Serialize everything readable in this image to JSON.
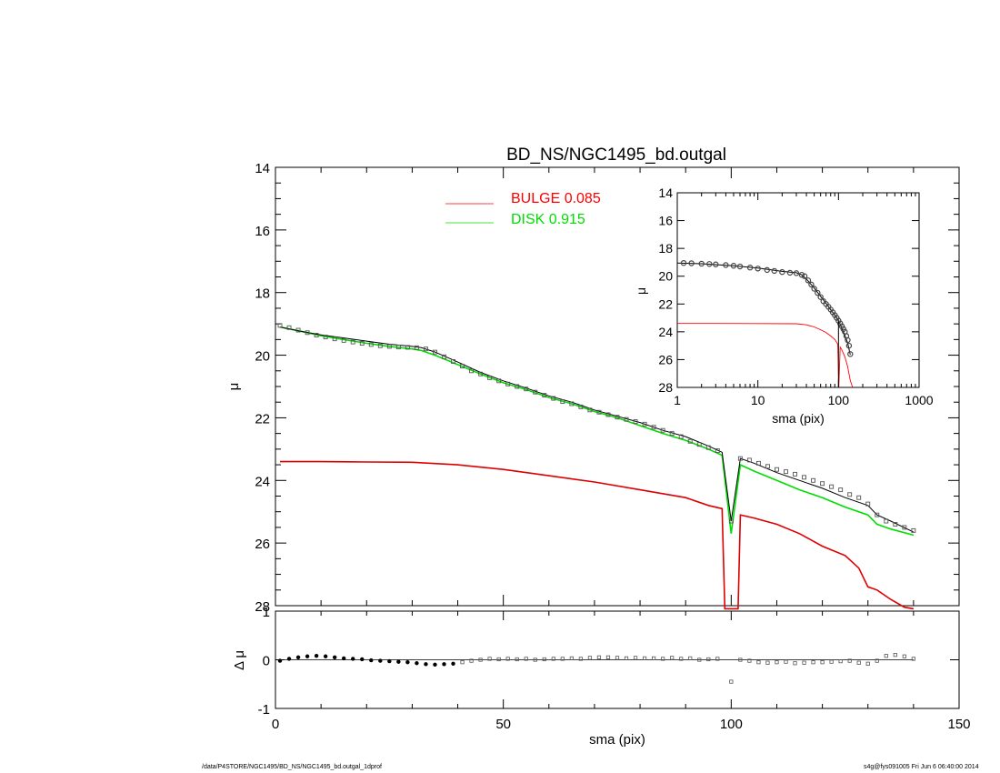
{
  "title": "BD_NS/NGC1495_bd.outgal",
  "footer": {
    "path": "/data/P4STORE/NGC1495/BD_NS/NGC1495_bd.outgal_1dprof",
    "stamp": "s4g@fys091005  Fri Jun  6 06:40:00 2014"
  },
  "colors": {
    "bulge": "#ff0000",
    "disk": "#00ee00",
    "data": "#555555",
    "model": "#000000"
  },
  "legend": [
    {
      "label": "BULGE  0.085",
      "color": "#ff0000"
    },
    {
      "label": "DISK  0.915",
      "color": "#00dd00"
    }
  ],
  "chart_data": [
    {
      "type": "line",
      "panel": "main",
      "xlabel": "",
      "ylabel": "μ",
      "xlim": [
        0,
        150
      ],
      "ylim": [
        28,
        14
      ],
      "y_inverted": true,
      "yticks": [
        14,
        16,
        18,
        20,
        22,
        24,
        26,
        28
      ],
      "series": [
        {
          "name": "data",
          "x": [
            1,
            3,
            5,
            7,
            9,
            11,
            13,
            15,
            17,
            19,
            21,
            23,
            25,
            27,
            29,
            31,
            33,
            35,
            37,
            39,
            41,
            43,
            45,
            47,
            49,
            51,
            53,
            55,
            57,
            59,
            61,
            63,
            65,
            67,
            69,
            71,
            73,
            75,
            77,
            79,
            81,
            83,
            85,
            87,
            89,
            91,
            93,
            95,
            97,
            100,
            102,
            104,
            106,
            108,
            110,
            112,
            114,
            116,
            118,
            120,
            122,
            124,
            126,
            128,
            130,
            132,
            134,
            136,
            138,
            140
          ],
          "y": [
            19.05,
            19.12,
            19.2,
            19.28,
            19.36,
            19.42,
            19.48,
            19.53,
            19.58,
            19.62,
            19.66,
            19.7,
            19.72,
            19.74,
            19.75,
            19.76,
            19.8,
            19.9,
            20.05,
            20.2,
            20.35,
            20.5,
            20.6,
            20.72,
            20.82,
            20.92,
            21.0,
            21.08,
            21.18,
            21.28,
            21.38,
            21.48,
            21.55,
            21.65,
            21.75,
            21.82,
            21.9,
            21.98,
            22.05,
            22.12,
            22.2,
            22.3,
            22.4,
            22.5,
            22.6,
            22.75,
            22.85,
            22.95,
            23.05,
            25.3,
            23.3,
            23.35,
            23.45,
            23.55,
            23.65,
            23.72,
            23.8,
            23.9,
            24.0,
            24.1,
            24.2,
            24.3,
            24.45,
            24.55,
            24.75,
            25.1,
            25.3,
            25.4,
            25.5,
            25.6
          ]
        },
        {
          "name": "model",
          "x": [
            1,
            5,
            10,
            15,
            20,
            25,
            30,
            32,
            35,
            40,
            45,
            50,
            55,
            60,
            65,
            70,
            75,
            80,
            85,
            90,
            95,
            98,
            100,
            102,
            105,
            110,
            115,
            120,
            125,
            130,
            132,
            135,
            140
          ],
          "y": [
            19.1,
            19.22,
            19.35,
            19.45,
            19.55,
            19.65,
            19.72,
            19.76,
            19.9,
            20.22,
            20.55,
            20.82,
            21.05,
            21.3,
            21.5,
            21.75,
            21.95,
            22.15,
            22.4,
            22.6,
            22.9,
            23.1,
            25.3,
            23.3,
            23.45,
            23.75,
            24.0,
            24.25,
            24.55,
            24.8,
            25.1,
            25.3,
            25.65
          ]
        },
        {
          "name": "disk",
          "x": [
            1,
            5,
            10,
            15,
            20,
            25,
            30,
            32,
            35,
            40,
            45,
            50,
            55,
            60,
            65,
            70,
            75,
            80,
            85,
            90,
            95,
            98,
            100,
            102,
            105,
            110,
            115,
            120,
            125,
            130,
            132,
            135,
            140
          ],
          "y": [
            19.1,
            19.22,
            19.38,
            19.5,
            19.62,
            19.72,
            19.8,
            19.85,
            20.0,
            20.3,
            20.6,
            20.88,
            21.1,
            21.35,
            21.55,
            21.8,
            22.0,
            22.25,
            22.5,
            22.72,
            23.0,
            23.2,
            25.7,
            23.5,
            23.7,
            24.0,
            24.3,
            24.55,
            24.85,
            25.1,
            25.4,
            25.55,
            25.75
          ]
        },
        {
          "name": "bulge",
          "x": [
            1,
            10,
            20,
            30,
            40,
            50,
            60,
            70,
            80,
            90,
            95,
            98,
            98.6,
            101.5,
            102,
            105,
            110,
            115,
            120,
            125,
            128,
            130,
            132,
            135,
            138,
            140
          ],
          "y": [
            23.4,
            23.4,
            23.41,
            23.42,
            23.5,
            23.65,
            23.85,
            24.05,
            24.3,
            24.55,
            24.8,
            24.9,
            28.1,
            28.1,
            25.1,
            25.2,
            25.4,
            25.7,
            26.1,
            26.4,
            26.8,
            27.4,
            27.5,
            27.8,
            28.05,
            28.1
          ]
        }
      ]
    },
    {
      "type": "scatter",
      "panel": "residual",
      "xlabel": "sma (pix)",
      "ylabel": "Δ μ",
      "xlim": [
        0,
        150
      ],
      "ylim": [
        -1,
        1
      ],
      "xticks": [
        0,
        50,
        100,
        150
      ],
      "yticks": [
        -1,
        0,
        1
      ],
      "series": [
        {
          "name": "residual",
          "x": [
            1,
            3,
            5,
            7,
            9,
            11,
            13,
            15,
            17,
            19,
            21,
            23,
            25,
            27,
            29,
            31,
            33,
            35,
            37,
            39,
            41,
            43,
            45,
            47,
            49,
            51,
            53,
            55,
            57,
            59,
            61,
            63,
            65,
            67,
            69,
            71,
            73,
            75,
            77,
            79,
            81,
            83,
            85,
            87,
            89,
            91,
            93,
            95,
            97,
            100,
            102,
            104,
            106,
            108,
            110,
            112,
            114,
            116,
            118,
            120,
            122,
            124,
            126,
            128,
            130,
            132,
            134,
            136,
            138,
            140
          ],
          "y": [
            -0.02,
            0.02,
            0.05,
            0.07,
            0.08,
            0.07,
            0.05,
            0.03,
            0.02,
            0.01,
            -0.01,
            -0.02,
            -0.03,
            -0.04,
            -0.05,
            -0.07,
            -0.09,
            -0.1,
            -0.09,
            -0.08,
            -0.05,
            -0.02,
            0.0,
            0.02,
            0.01,
            0.02,
            0.01,
            0.02,
            0.0,
            0.01,
            0.02,
            0.02,
            0.03,
            0.02,
            0.04,
            0.05,
            0.05,
            0.04,
            0.03,
            0.04,
            0.03,
            0.03,
            0.02,
            0.04,
            0.02,
            0.03,
            0.0,
            0.01,
            0.02,
            -0.45,
            0.0,
            -0.02,
            -0.05,
            -0.06,
            -0.05,
            -0.04,
            -0.07,
            -0.06,
            -0.05,
            -0.05,
            -0.04,
            -0.03,
            -0.02,
            -0.06,
            -0.08,
            -0.02,
            0.08,
            0.1,
            0.07,
            0.02
          ]
        }
      ]
    },
    {
      "type": "line",
      "panel": "inset",
      "xlabel": "sma (pix)",
      "ylabel": "μ",
      "x_scale": "log",
      "xlim": [
        1,
        1000
      ],
      "ylim": [
        28,
        14
      ],
      "y_inverted": true,
      "xticks": [
        1,
        10,
        100,
        1000
      ],
      "yticks": [
        14,
        16,
        18,
        20,
        22,
        24,
        26,
        28
      ],
      "series": [
        {
          "name": "data",
          "x": [
            1.2,
            1.5,
            2,
            2.5,
            3,
            4,
            5,
            6,
            8,
            10,
            13,
            16,
            20,
            25,
            30,
            35,
            38,
            42,
            46,
            50,
            55,
            60,
            65,
            70,
            75,
            80,
            85,
            90,
            95,
            100,
            105,
            110,
            115,
            120,
            125,
            130,
            135,
            140
          ],
          "y": [
            19.05,
            19.07,
            19.1,
            19.12,
            19.15,
            19.2,
            19.25,
            19.3,
            19.38,
            19.45,
            19.55,
            19.62,
            19.7,
            19.75,
            19.78,
            19.9,
            20.0,
            20.3,
            20.6,
            20.9,
            21.2,
            21.5,
            21.8,
            22.0,
            22.2,
            22.4,
            22.6,
            22.8,
            23.0,
            23.2,
            23.4,
            23.6,
            23.8,
            24.0,
            24.3,
            24.6,
            25.0,
            25.6
          ]
        },
        {
          "name": "model",
          "x": [
            1,
            2,
            5,
            10,
            20,
            30,
            35,
            40,
            50,
            60,
            70,
            80,
            90,
            100,
            110,
            120,
            130,
            140
          ],
          "y": [
            19.05,
            19.1,
            19.25,
            19.42,
            19.65,
            19.75,
            19.9,
            20.2,
            20.85,
            21.45,
            21.95,
            22.4,
            22.8,
            23.2,
            23.75,
            24.25,
            24.8,
            25.65
          ]
        },
        {
          "name": "bulge",
          "x": [
            1,
            3,
            10,
            30,
            40,
            50,
            60,
            70,
            80,
            90,
            98,
            101,
            105,
            110,
            120,
            130,
            140,
            150
          ],
          "y": [
            23.4,
            23.4,
            23.41,
            23.42,
            23.5,
            23.65,
            23.85,
            24.05,
            24.3,
            24.55,
            24.9,
            28,
            25.1,
            25.3,
            25.8,
            26.5,
            27.5,
            28
          ]
        }
      ]
    }
  ]
}
